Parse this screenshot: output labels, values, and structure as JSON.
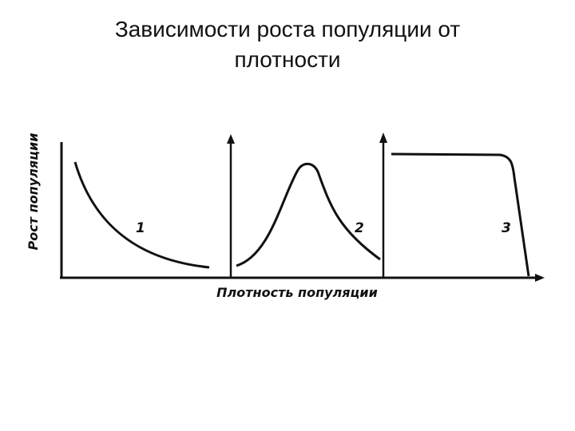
{
  "title": {
    "line1": "Зависимости роста популяции от",
    "line2": "плотности"
  },
  "diagram": {
    "y_axis_label": "Рост популяции",
    "x_axis_label": "Плотность популяции",
    "curves": [
      {
        "number": "1"
      },
      {
        "number": "2"
      },
      {
        "number": "3"
      }
    ]
  }
}
